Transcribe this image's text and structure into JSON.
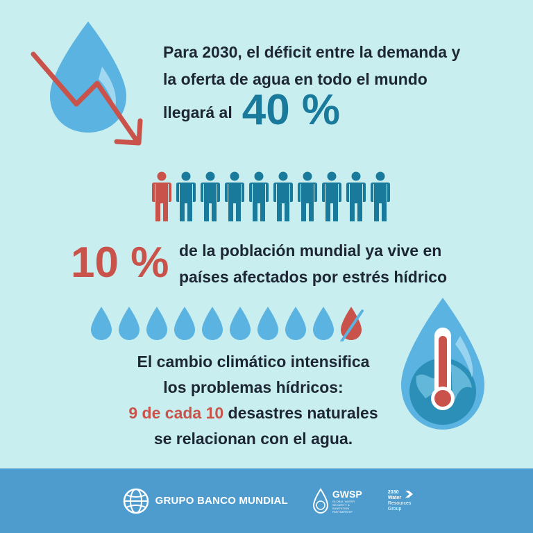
{
  "colors": {
    "background": "#c9eef0",
    "teal": "#1a7a9c",
    "red": "#c9534a",
    "drop_blue": "#5ab3e0",
    "footer": "#4e9ccd"
  },
  "section1": {
    "line1": "Para 2030, el déficit entre la demanda y",
    "line2": "la oferta de agua en todo el mundo",
    "line3_prefix": "llegará al",
    "big_value": "40 %"
  },
  "people_row": {
    "total": 10,
    "highlighted": 1,
    "icon": "person-icon"
  },
  "section2": {
    "big_value": "10 %",
    "line1": "de la población mundial ya vive en",
    "line2": "países afectados por estrés hídrico"
  },
  "drops_row": {
    "total": 10,
    "highlighted": 1,
    "icon": "water-drop-icon"
  },
  "section3": {
    "line1": "El cambio climático intensifica",
    "line2": "los problemas hídricos:",
    "line3_highlight": "9 de cada 10",
    "line3_rest": " desastres naturales",
    "line4": "se relacionan con el agua."
  },
  "footer": {
    "logo1": "GRUPO BANCO MUNDIAL",
    "logo2_name": "GWSP",
    "logo2_sub": "GLOBAL WATER SECURITY & SANITATION PARTNERSHIP",
    "logo3_line1": "2030",
    "logo3_line2": "Water",
    "logo3_line3": "Resources",
    "logo3_line4": "Group"
  }
}
